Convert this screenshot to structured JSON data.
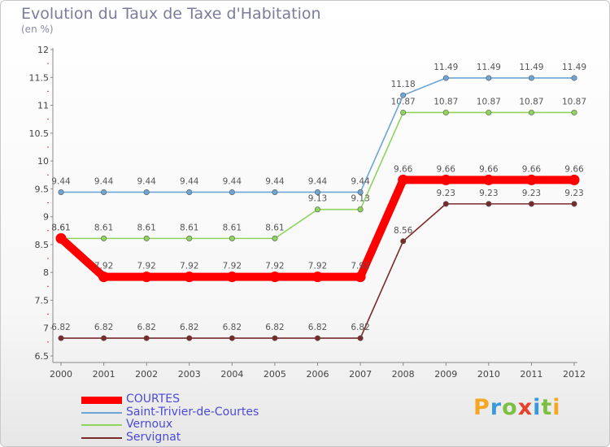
{
  "header": {
    "title": "Evolution du Taux de Taxe d'Habitation",
    "subtitle": "(en %)"
  },
  "logo": {
    "text": "Proxiti"
  },
  "chart_data": {
    "type": "line",
    "title": "Evolution du Taux de Taxe d'Habitation",
    "ylabel": "(en %)",
    "xlabel": "",
    "ylim": [
      6.5,
      12
    ],
    "yticks": [
      "6.5",
      "7",
      "7.5",
      "8",
      "8.5",
      "9",
      "9.5",
      "10",
      "10.5",
      "11",
      "11.5",
      "12"
    ],
    "categories": [
      "2000",
      "2001",
      "2002",
      "2003",
      "2004",
      "2005",
      "2006",
      "2007",
      "2008",
      "2009",
      "2010",
      "2011",
      "2012"
    ],
    "grid": false,
    "legend_position": "bottom-left",
    "series": [
      {
        "name": "COURTES",
        "color": "#ff0000",
        "values": [
          8.61,
          7.92,
          7.92,
          7.92,
          7.92,
          7.92,
          7.92,
          7.92,
          9.66,
          9.66,
          9.66,
          9.66,
          9.66
        ]
      },
      {
        "name": "Saint-Trivier-de-Courtes",
        "color": "#6da5d4",
        "values": [
          9.44,
          9.44,
          9.44,
          9.44,
          9.44,
          9.44,
          9.44,
          9.44,
          11.18,
          11.49,
          11.49,
          11.49,
          11.49
        ]
      },
      {
        "name": "Vernoux",
        "color": "#8fd45c",
        "values": [
          8.61,
          8.61,
          8.61,
          8.61,
          8.61,
          8.61,
          9.13,
          9.13,
          10.87,
          10.87,
          10.87,
          10.87,
          10.87
        ]
      },
      {
        "name": "Servignat",
        "color": "#7b2a2a",
        "values": [
          6.82,
          6.82,
          6.82,
          6.82,
          6.82,
          6.82,
          6.82,
          6.82,
          8.56,
          9.23,
          9.23,
          9.23,
          9.23
        ]
      }
    ]
  }
}
